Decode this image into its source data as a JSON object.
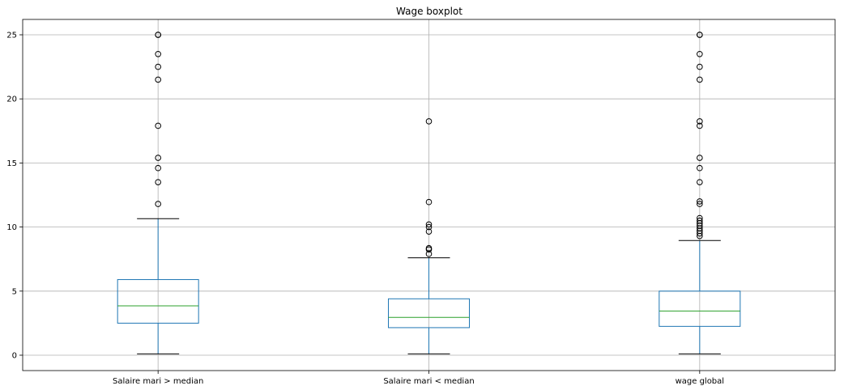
{
  "chart_data": {
    "type": "boxplot",
    "title": "Wage boxplot",
    "ylim": [
      -1.2,
      26.2
    ],
    "yticks": [
      0,
      5,
      10,
      15,
      20,
      25
    ],
    "grid": true,
    "categories": [
      "Salaire mari > median",
      "Salaire mari < median",
      "wage global"
    ],
    "boxes": [
      {
        "name": "Salaire mari > median",
        "whisker_low": 0.1,
        "q1": 2.5,
        "median": 3.85,
        "q3": 5.9,
        "whisker_high": 10.65,
        "fliers": [
          11.8,
          13.5,
          14.6,
          15.4,
          17.9,
          21.5,
          22.5,
          23.5,
          25.0,
          25.0
        ]
      },
      {
        "name": "Salaire mari < median",
        "whisker_low": 0.1,
        "q1": 2.15,
        "median": 2.95,
        "q3": 4.4,
        "whisker_high": 7.6,
        "fliers": [
          7.9,
          8.25,
          8.35,
          9.65,
          10.0,
          10.2,
          11.95,
          18.25
        ]
      },
      {
        "name": "wage global",
        "whisker_low": 0.1,
        "q1": 2.25,
        "median": 3.45,
        "q3": 5.0,
        "whisker_high": 8.95,
        "fliers": [
          9.3,
          9.5,
          9.7,
          9.9,
          10.1,
          10.3,
          10.5,
          10.7,
          11.8,
          12.0,
          13.5,
          14.6,
          15.4,
          17.9,
          18.25,
          21.5,
          22.5,
          23.5,
          25.0,
          25.0
        ]
      }
    ]
  }
}
